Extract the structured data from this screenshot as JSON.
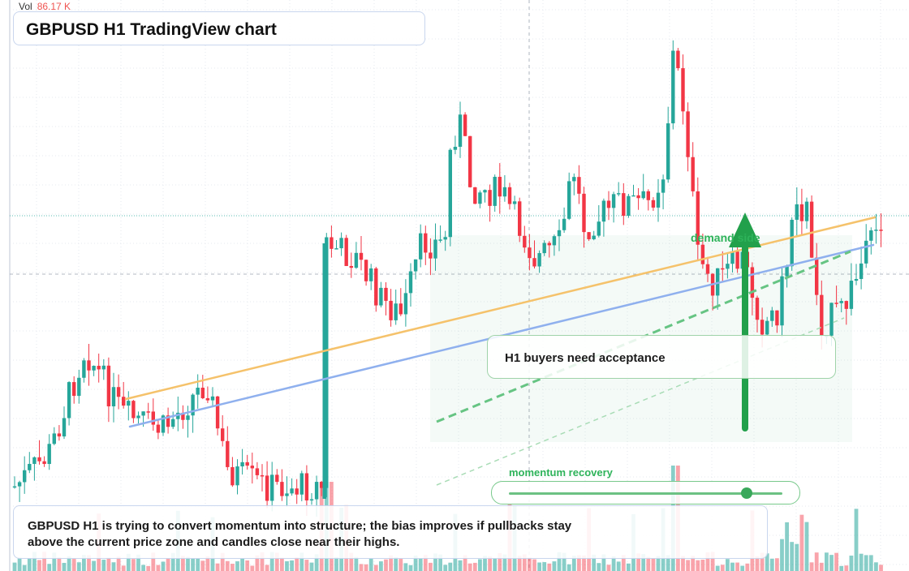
{
  "header": {
    "title": "GBPUSD H1 TradingView chart"
  },
  "volume_legend": {
    "label": "Vol",
    "value": "86.17 K"
  },
  "annotations": {
    "note": "H1 buyers need acceptance",
    "zone_label": "demand side",
    "momentum_label": "momentum recovery",
    "summary": "GBPUSD H1 is trying to convert momentum into structure; the bias improves if pullbacks stay above the current price zone and candles close near their highs."
  },
  "momentum": {
    "level": 0.87
  },
  "colors": {
    "up": "#26a69a",
    "down": "#f23645",
    "accent": "#22a04b",
    "trend_orange": "#f5c26b",
    "trend_blue": "#8fb0ee"
  },
  "chart_data": {
    "type": "candlestick",
    "symbol": "GBPUSD",
    "timeframe": "H1",
    "candles_count": 108,
    "candles_extraction_seed": 7,
    "price_range": [
      0.0,
      1.0
    ],
    "grid": true,
    "overlays": [
      {
        "kind": "trendline",
        "color": "orange"
      },
      {
        "kind": "trendline",
        "color": "blue"
      },
      {
        "kind": "dashed-trendline",
        "color": "green"
      },
      {
        "kind": "arrow",
        "direction": "up",
        "color": "green"
      }
    ]
  }
}
